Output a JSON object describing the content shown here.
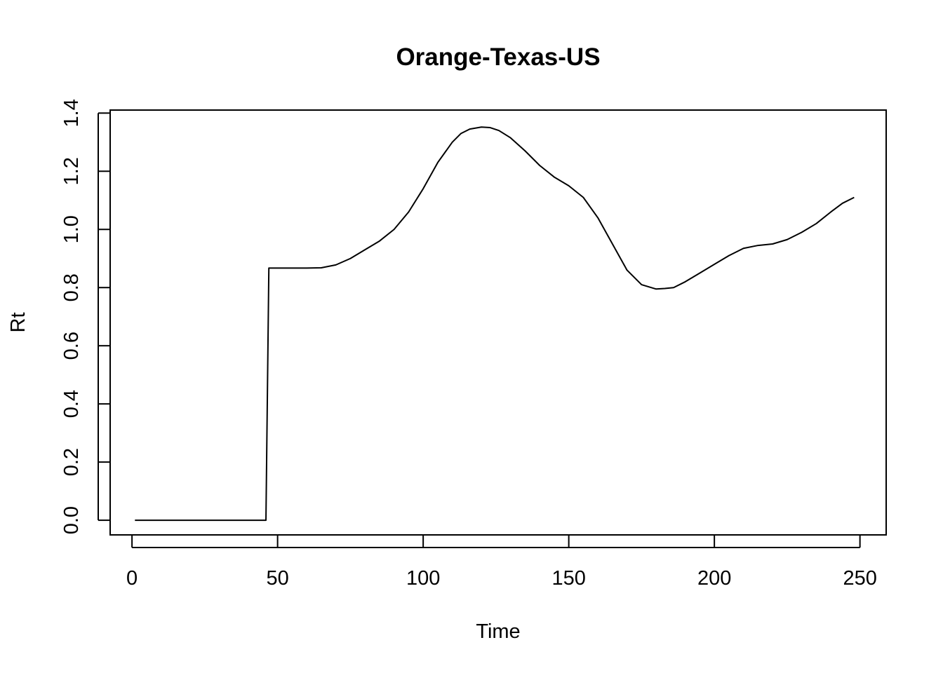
{
  "chart_data": {
    "type": "line",
    "title": "Orange-Texas-US",
    "xlabel": "Time",
    "ylabel": "Rt",
    "xlim": [
      -7.5,
      259
    ],
    "ylim": [
      -0.0504,
      1.4104
    ],
    "xticks": [
      0,
      50,
      100,
      150,
      200,
      250
    ],
    "xtick_labels": [
      "0",
      "50",
      "100",
      "150",
      "200",
      "250"
    ],
    "yticks": [
      0.0,
      0.2,
      0.4,
      0.6,
      0.8,
      1.0,
      1.2,
      1.4
    ],
    "ytick_labels": [
      "0.0",
      "0.2",
      "0.4",
      "0.6",
      "0.8",
      "1.0",
      "1.2",
      "1.4"
    ],
    "grid": false,
    "series": [
      {
        "color": "#000000",
        "x": [
          1,
          46,
          47,
          50,
          55,
          60,
          65,
          70,
          75,
          80,
          85,
          90,
          95,
          100,
          105,
          110,
          113,
          116,
          120,
          123,
          126,
          130,
          135,
          140,
          145,
          150,
          155,
          160,
          165,
          170,
          175,
          180,
          183,
          186,
          190,
          195,
          200,
          205,
          210,
          215,
          220,
          225,
          230,
          235,
          240,
          244,
          248
        ],
        "y": [
          0.0,
          0.0,
          0.867,
          0.867,
          0.867,
          0.867,
          0.868,
          0.878,
          0.9,
          0.93,
          0.96,
          1.0,
          1.06,
          1.14,
          1.23,
          1.3,
          1.33,
          1.345,
          1.352,
          1.35,
          1.34,
          1.315,
          1.27,
          1.22,
          1.18,
          1.15,
          1.11,
          1.04,
          0.95,
          0.86,
          0.81,
          0.795,
          0.797,
          0.8,
          0.82,
          0.85,
          0.88,
          0.91,
          0.935,
          0.945,
          0.95,
          0.965,
          0.99,
          1.02,
          1.06,
          1.09,
          1.11
        ]
      }
    ]
  }
}
